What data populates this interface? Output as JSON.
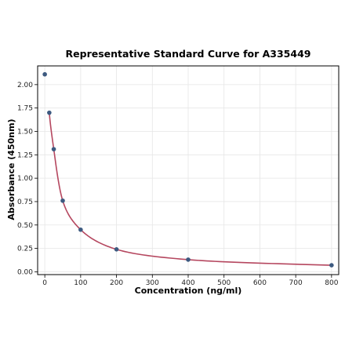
{
  "chart_data": {
    "type": "scatter",
    "title": "Representative Standard Curve for A335449",
    "xlabel": "Concentration (ng/ml)",
    "ylabel": "Absorbance (450nm)",
    "xlim": [
      -20,
      820
    ],
    "ylim": [
      -0.03,
      2.2
    ],
    "xticks": [
      0,
      100,
      200,
      300,
      400,
      500,
      600,
      700,
      800
    ],
    "yticks": [
      0.0,
      0.25,
      0.5,
      0.75,
      1.0,
      1.25,
      1.5,
      1.75,
      2.0
    ],
    "ytick_labels": [
      "0.00",
      "0.25",
      "0.50",
      "0.75",
      "1.00",
      "1.25",
      "1.50",
      "1.75",
      "2.00"
    ],
    "grid": true,
    "series": [
      {
        "kind": "points",
        "x": [
          0,
          12.5,
          25,
          50,
          100,
          200,
          400,
          800
        ],
        "y": [
          2.11,
          1.7,
          1.31,
          0.76,
          0.45,
          0.24,
          0.13,
          0.07
        ]
      },
      {
        "kind": "fitted-curve",
        "x_range": [
          12.5,
          800
        ]
      }
    ],
    "colors": {
      "points": "#3d5a80",
      "curve": "#b5475f",
      "grid": "#e6e6e6",
      "frame": "#000000"
    }
  }
}
